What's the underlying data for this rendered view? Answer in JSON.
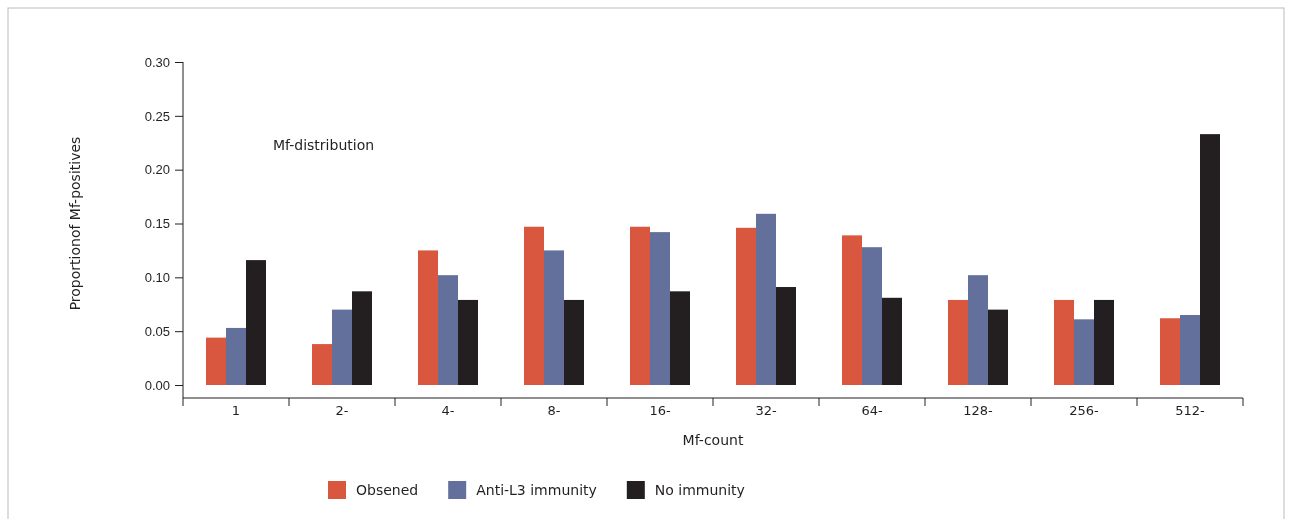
{
  "chart_data": {
    "type": "bar",
    "xlabel": "Mf-count",
    "ylabel": "Proportionof Mf-positives",
    "categories": [
      "1",
      "2-",
      "4-",
      "8-",
      "16-",
      "32-",
      "64-",
      "128-",
      "256-",
      "512-"
    ],
    "series": [
      {
        "name": "Obsened",
        "color": "#d9573f",
        "values": [
          0.044,
          0.038,
          0.125,
          0.147,
          0.147,
          0.146,
          0.139,
          0.079,
          0.079,
          0.062
        ]
      },
      {
        "name": "Anti-L3 immunity",
        "color": "#62709b",
        "values": [
          0.053,
          0.07,
          0.102,
          0.125,
          0.142,
          0.159,
          0.128,
          0.102,
          0.061,
          0.065
        ]
      },
      {
        "name": "No immunity",
        "color": "#231f20",
        "values": [
          0.116,
          0.087,
          0.079,
          0.079,
          0.087,
          0.091,
          0.081,
          0.07,
          0.079,
          0.233
        ]
      }
    ],
    "ylim": [
      0,
      0.3
    ],
    "yticks": [
      {
        "value": 0,
        "label": "0.00"
      },
      {
        "value": 0.05,
        "label": "0.05"
      },
      {
        "value": 0.1,
        "label": "0.10"
      },
      {
        "value": 0.15,
        "label": "0.15"
      },
      {
        "value": 0.2,
        "label": "0.20"
      },
      {
        "value": 0.25,
        "label": "0.25"
      },
      {
        "value": 0.3,
        "label": "0.30"
      }
    ],
    "annotations": [
      "Mf-distribution"
    ],
    "legend": "bottom",
    "grid": false
  }
}
